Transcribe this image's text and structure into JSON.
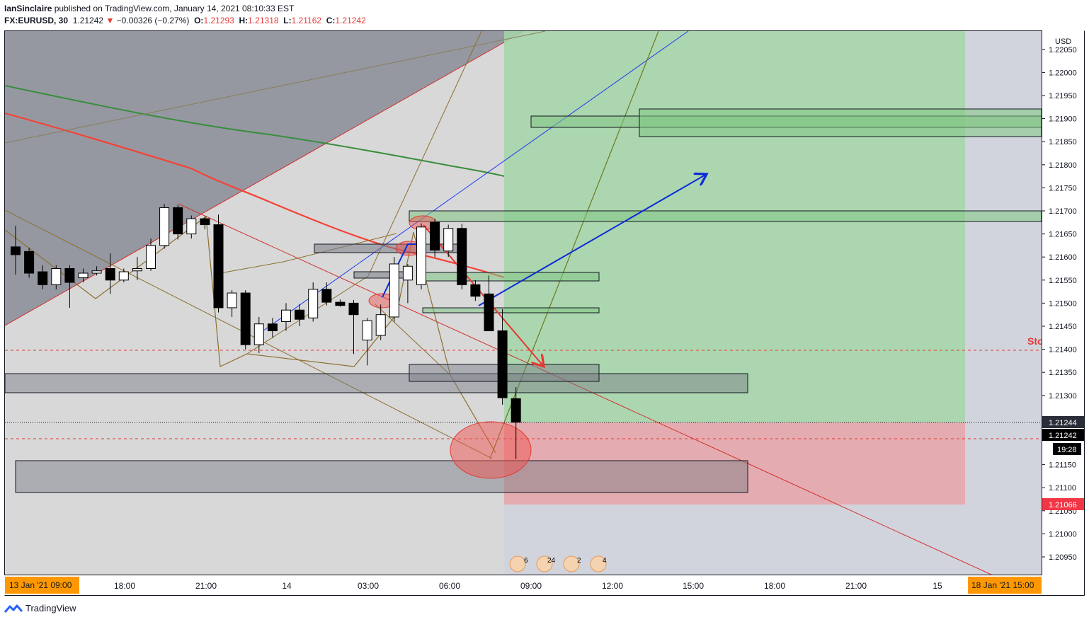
{
  "header": {
    "publisher": "IanSinclaire",
    "published_text": "published on TradingView.com, January 14, 2021 08:10:33 EST",
    "symbol": "FX:EURUSD, 30",
    "last": "1.21242",
    "change": "−0.00326 (−0.27%)",
    "o_label": "O:",
    "o": "1.21293",
    "h_label": "H:",
    "h": "1.21318",
    "l_label": "L:",
    "l": "1.21162",
    "c_label": "C:",
    "c": "1.21242"
  },
  "footer": {
    "brand": "TradingView",
    "logo": "tradingview-logo-icon"
  },
  "colors": {
    "up": "#ffffff",
    "down": "#000000",
    "pane": "#d1d4dc",
    "long_zone": "#a5d6a7",
    "stop_zone": "#e57373",
    "ma_red": "#f44336",
    "ma_green": "#388e3c"
  },
  "chart_data": {
    "type": "candlestick",
    "currency": "USD",
    "y_ticks": [
      "1.22050",
      "1.22000",
      "1.21950",
      "1.21900",
      "1.21850",
      "1.21800",
      "1.21750",
      "1.21700",
      "1.21650",
      "1.21600",
      "1.21550",
      "1.21500",
      "1.21450",
      "1.21400",
      "1.21350",
      "1.21300",
      "1.21250",
      "1.21150",
      "1.21100",
      "1.21050",
      "1.21000",
      "1.20950"
    ],
    "x_ticks": [
      "18:00",
      "21:00",
      "14",
      "03:00",
      "06:00",
      "09:00",
      "12:00",
      "15:00",
      "18:00",
      "21:00",
      "15"
    ],
    "x_range_labels": {
      "start": "13 Jan '21   09:00",
      "end": "18 Jan '21   15:00"
    },
    "price_labels": {
      "target_top": "1.21244",
      "last_price": "1.21242",
      "countdown": "19:28",
      "stop": "1.21066"
    },
    "stop_text": "Sto",
    "event_badges": [
      "6",
      "24",
      "2",
      "4"
    ],
    "event_icon": "us-flag-icon",
    "candles": [
      {
        "o": 1.21622,
        "h": 1.21668,
        "c": 1.21605,
        "l": 1.21562
      },
      {
        "o": 1.21612,
        "h": 1.2162,
        "c": 1.21565,
        "l": 1.21555
      },
      {
        "o": 1.21568,
        "h": 1.21582,
        "c": 1.2154,
        "l": 1.2153
      },
      {
        "o": 1.2154,
        "h": 1.21582,
        "c": 1.21575,
        "l": 1.2153
      },
      {
        "o": 1.21575,
        "h": 1.21582,
        "c": 1.21545,
        "l": 1.2149
      },
      {
        "o": 1.21555,
        "h": 1.21575,
        "c": 1.21565,
        "l": 1.21545
      },
      {
        "o": 1.21565,
        "h": 1.2158,
        "c": 1.2157,
        "l": 1.2156
      },
      {
        "o": 1.21575,
        "h": 1.21608,
        "c": 1.2155,
        "l": 1.2152
      },
      {
        "o": 1.2155,
        "h": 1.21575,
        "c": 1.21568,
        "l": 1.21545
      },
      {
        "o": 1.2157,
        "h": 1.216,
        "c": 1.21575,
        "l": 1.2155
      },
      {
        "o": 1.21575,
        "h": 1.2164,
        "c": 1.21625,
        "l": 1.2157
      },
      {
        "o": 1.21625,
        "h": 1.21715,
        "c": 1.21707,
        "l": 1.21618
      },
      {
        "o": 1.21707,
        "h": 1.21713,
        "c": 1.2165,
        "l": 1.21638
      },
      {
        "o": 1.2165,
        "h": 1.2169,
        "c": 1.21683,
        "l": 1.2164
      },
      {
        "o": 1.21683,
        "h": 1.21688,
        "c": 1.2167,
        "l": 1.2166
      },
      {
        "o": 1.2167,
        "h": 1.21692,
        "c": 1.2149,
        "l": 1.2148
      },
      {
        "o": 1.2149,
        "h": 1.21528,
        "c": 1.21522,
        "l": 1.2147
      },
      {
        "o": 1.21522,
        "h": 1.21528,
        "c": 1.2141,
        "l": 1.214
      },
      {
        "o": 1.2141,
        "h": 1.2147,
        "c": 1.21455,
        "l": 1.21392
      },
      {
        "o": 1.21455,
        "h": 1.21468,
        "c": 1.2144,
        "l": 1.21425
      },
      {
        "o": 1.2146,
        "h": 1.215,
        "c": 1.21485,
        "l": 1.2144
      },
      {
        "o": 1.21485,
        "h": 1.21498,
        "c": 1.21465,
        "l": 1.2145
      },
      {
        "o": 1.21468,
        "h": 1.21545,
        "c": 1.2153,
        "l": 1.2146
      },
      {
        "o": 1.2153,
        "h": 1.21545,
        "c": 1.21502,
        "l": 1.21495
      },
      {
        "o": 1.21502,
        "h": 1.21508,
        "c": 1.21495,
        "l": 1.21492
      },
      {
        "o": 1.215,
        "h": 1.21507,
        "c": 1.21475,
        "l": 1.2139
      },
      {
        "o": 1.2142,
        "h": 1.21468,
        "c": 1.21462,
        "l": 1.21365
      },
      {
        "o": 1.2143,
        "h": 1.21497,
        "c": 1.21475,
        "l": 1.2142
      },
      {
        "o": 1.2147,
        "h": 1.216,
        "c": 1.21585,
        "l": 1.2146
      },
      {
        "o": 1.2155,
        "h": 1.21585,
        "c": 1.2158,
        "l": 1.215
      },
      {
        "o": 1.2154,
        "h": 1.21673,
        "c": 1.21665,
        "l": 1.2153
      },
      {
        "o": 1.21675,
        "h": 1.21683,
        "c": 1.21615,
        "l": 1.216
      },
      {
        "o": 1.21613,
        "h": 1.2167,
        "c": 1.21662,
        "l": 1.216
      },
      {
        "o": 1.21662,
        "h": 1.21672,
        "c": 1.2154,
        "l": 1.2153
      },
      {
        "o": 1.2154,
        "h": 1.2155,
        "c": 1.21515,
        "l": 1.21505
      },
      {
        "o": 1.2152,
        "h": 1.2156,
        "c": 1.2144,
        "l": 1.2144
      },
      {
        "o": 1.2144,
        "h": 1.21487,
        "c": 1.21295,
        "l": 1.2128
      },
      {
        "o": 1.21293,
        "h": 1.21318,
        "c": 1.21242,
        "l": 1.21162
      }
    ]
  }
}
